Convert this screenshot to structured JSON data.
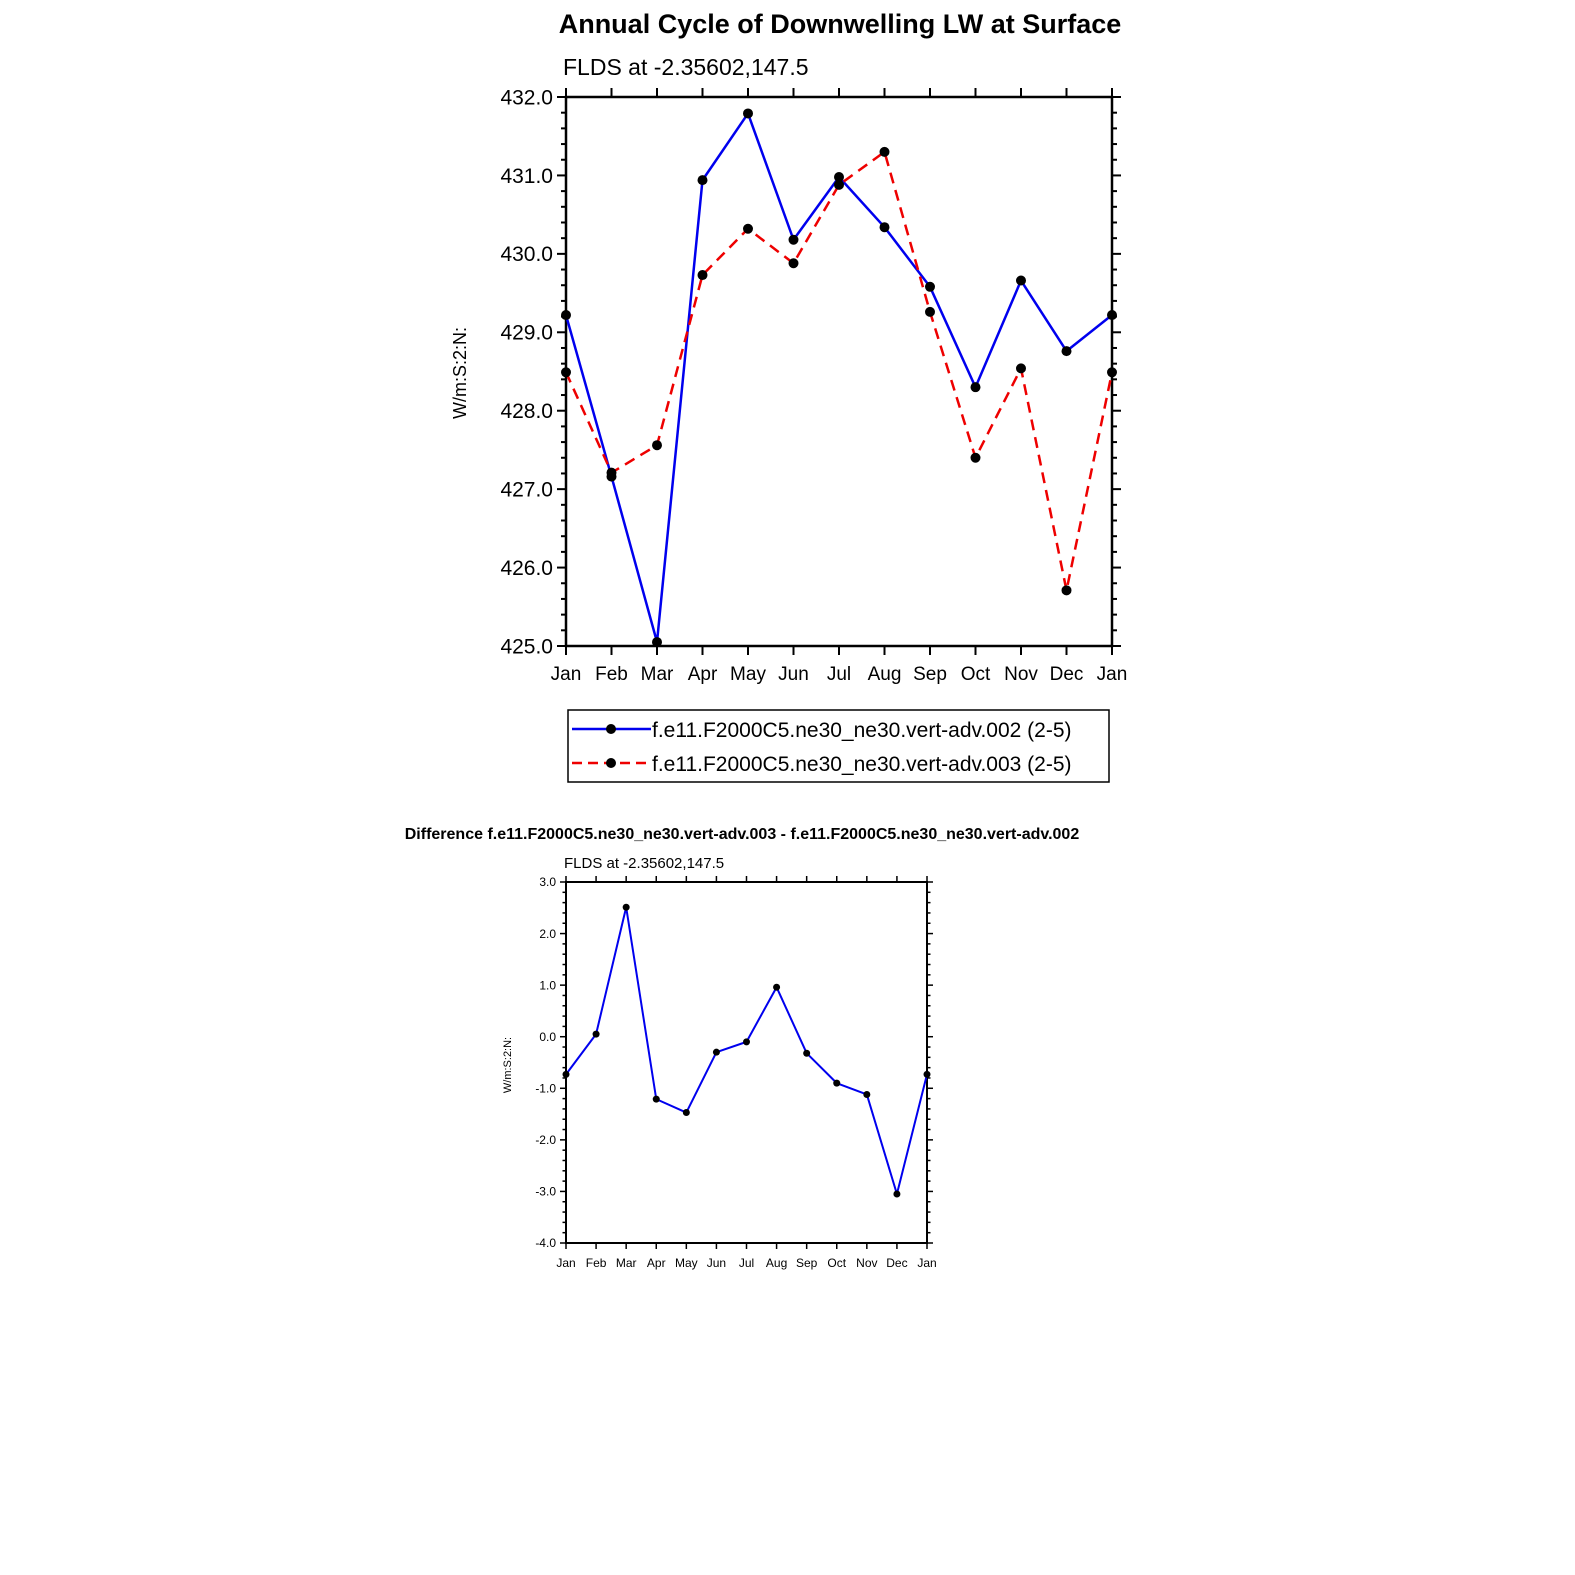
{
  "chart_data": [
    {
      "type": "line",
      "title": "Annual Cycle of Downwelling LW at Surface",
      "subtitle": "FLDS at -2.35602,147.5",
      "xlabel": "",
      "ylabel": "W/m:S:2:N:",
      "categories": [
        "Jan",
        "Feb",
        "Mar",
        "Apr",
        "May",
        "Jun",
        "Jul",
        "Aug",
        "Sep",
        "Oct",
        "Nov",
        "Dec",
        "Jan"
      ],
      "ylim": [
        425.0,
        432.0
      ],
      "yticks": [
        "425.0",
        "426.0",
        "427.0",
        "428.0",
        "429.0",
        "430.0",
        "431.0",
        "432.0"
      ],
      "legend_position": "bottom",
      "series": [
        {
          "name": "f.e11.F2000C5.ne30_ne30.vert-adv.002 (2-5)",
          "color": "#0000ee",
          "dash": "solid",
          "values": [
            429.22,
            427.16,
            425.05,
            430.94,
            431.79,
            430.18,
            430.98,
            430.34,
            429.58,
            428.3,
            429.66,
            428.76,
            429.22
          ]
        },
        {
          "name": "f.e11.F2000C5.ne30_ne30.vert-adv.003 (2-5)",
          "color": "#ee0000",
          "dash": "dashed",
          "values": [
            428.49,
            427.21,
            427.56,
            429.73,
            430.32,
            429.88,
            430.88,
            431.3,
            429.26,
            427.4,
            428.54,
            425.71,
            428.49
          ]
        }
      ]
    },
    {
      "type": "line",
      "title": "Difference f.e11.F2000C5.ne30_ne30.vert-adv.003 - f.e11.F2000C5.ne30_ne30.vert-adv.002",
      "subtitle": "FLDS at -2.35602,147.5",
      "xlabel": "",
      "ylabel": "W/m:S:2:N:",
      "categories": [
        "Jan",
        "Feb",
        "Mar",
        "Apr",
        "May",
        "Jun",
        "Jul",
        "Aug",
        "Sep",
        "Oct",
        "Nov",
        "Dec",
        "Jan"
      ],
      "ylim": [
        -4.0,
        3.0
      ],
      "yticks": [
        "-4.0",
        "-3.0",
        "-2.0",
        "-1.0",
        "0.0",
        "1.0",
        "2.0",
        "3.0"
      ],
      "series": [
        {
          "name": "difference",
          "color": "#0000ee",
          "dash": "solid",
          "values": [
            -0.73,
            0.05,
            2.51,
            -1.21,
            -1.47,
            -0.3,
            -0.1,
            0.96,
            -0.32,
            -0.9,
            -1.12,
            -3.05,
            -0.73
          ]
        }
      ]
    }
  ]
}
